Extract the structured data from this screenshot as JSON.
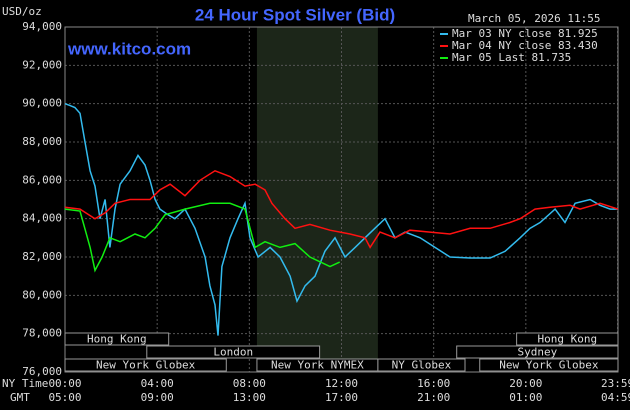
{
  "chart_data": {
    "type": "line",
    "title": "24 Hour Spot Silver (Bid)",
    "y_label": "USD/oz",
    "timestamp": "March 05, 2026 11:55",
    "site": "www.kitco.com",
    "x_label": "NY Time",
    "x2_label": "GMT",
    "xlim": [
      0,
      24
    ],
    "xticks": [
      {
        "value": 0,
        "label": "00:00"
      },
      {
        "value": 4,
        "label": "04:00"
      },
      {
        "value": 8,
        "label": "08:00"
      },
      {
        "value": 12,
        "label": "12:00"
      },
      {
        "value": 16,
        "label": "16:00"
      },
      {
        "value": 20,
        "label": "20:00"
      },
      {
        "value": 23.983,
        "label": "23:59"
      }
    ],
    "gmt_ticks": [
      {
        "value": 0,
        "label": "05:00"
      },
      {
        "value": 4,
        "label": "09:00"
      },
      {
        "value": 8,
        "label": "13:00"
      },
      {
        "value": 12,
        "label": "17:00"
      },
      {
        "value": 16,
        "label": "21:00"
      },
      {
        "value": 20,
        "label": "01:00"
      },
      {
        "value": 23.983,
        "label": "04:59"
      }
    ],
    "ylim": [
      76000,
      94000
    ],
    "yticks": [
      {
        "value": 76000,
        "label": "76,000"
      },
      {
        "value": 78000,
        "label": "78,000"
      },
      {
        "value": 80000,
        "label": "80,000"
      },
      {
        "value": 82000,
        "label": "82,000"
      },
      {
        "value": 84000,
        "label": "84,000"
      },
      {
        "value": 86000,
        "label": "86,000"
      },
      {
        "value": 88000,
        "label": "88,000"
      },
      {
        "value": 90000,
        "label": "90,000"
      },
      {
        "value": 92000,
        "label": "92,000"
      },
      {
        "value": 94000,
        "label": "94,000"
      }
    ],
    "grid": true,
    "series": [
      {
        "name": "Mar 03 NY close 81.925",
        "color": "#33bbee",
        "x": [
          0,
          0.22,
          0.43,
          0.65,
          0.87,
          1.09,
          1.3,
          1.52,
          1.74,
          1.95,
          2.17,
          2.39,
          2.82,
          3.17,
          3.47,
          3.69,
          3.91,
          4.12,
          4.47,
          4.77,
          5.21,
          5.64,
          6.08,
          6.29,
          6.51,
          6.64,
          6.81,
          7.16,
          7.51,
          7.81,
          8.03,
          8.38,
          8.9,
          9.33,
          9.77,
          10.07,
          10.42,
          10.85,
          11.28,
          11.72,
          12.15,
          12.59,
          13.02,
          13.45,
          13.89,
          14.32,
          14.76,
          15.41,
          16.06,
          16.71,
          17.58,
          18.45,
          19.1,
          19.75,
          20.18,
          20.62,
          21.27,
          21.7,
          22.14,
          22.79,
          23.22,
          23.66,
          24
        ],
        "values": [
          90000,
          89900,
          89800,
          89500,
          88000,
          86500,
          85700,
          84000,
          85000,
          82500,
          84500,
          85800,
          86500,
          87300,
          86800,
          86000,
          85000,
          84500,
          84200,
          84000,
          84500,
          83500,
          82000,
          80500,
          79500,
          77900,
          81500,
          83000,
          84000,
          84800,
          83000,
          82000,
          82500,
          82000,
          81000,
          79700,
          80500,
          81000,
          82300,
          83000,
          82000,
          82500,
          83000,
          83500,
          84000,
          83000,
          83300,
          83000,
          82500,
          82000,
          81950,
          81950,
          82300,
          83000,
          83500,
          83800,
          84500,
          83800,
          84800,
          85000,
          84700,
          84500,
          84500
        ]
      },
      {
        "name": "Mar 04 NY close 83.430",
        "color": "#ff1111",
        "x": [
          0,
          0.65,
          1.3,
          1.74,
          2.17,
          2.82,
          3.69,
          4.12,
          4.56,
          5.21,
          5.86,
          6.51,
          7.16,
          7.81,
          8.25,
          8.68,
          8.98,
          9.55,
          9.98,
          10.63,
          11.5,
          12.37,
          13.02,
          13.24,
          13.67,
          14.32,
          14.97,
          15.84,
          16.71,
          17.58,
          18.45,
          19.31,
          19.75,
          20.4,
          21.05,
          21.92,
          22.35,
          23.22,
          24
        ],
        "values": [
          84600,
          84500,
          84000,
          84300,
          84800,
          85000,
          85000,
          85500,
          85800,
          85200,
          86000,
          86500,
          86200,
          85700,
          85800,
          85500,
          84800,
          84000,
          83500,
          83700,
          83400,
          83200,
          83000,
          82500,
          83300,
          83000,
          83400,
          83300,
          83200,
          83500,
          83500,
          83800,
          84000,
          84500,
          84600,
          84700,
          84500,
          84800,
          84500
        ]
      },
      {
        "name": "Mar 05 Last 81.735",
        "color": "#11ee11",
        "x": [
          0,
          0.65,
          1.09,
          1.3,
          1.61,
          1.95,
          2.39,
          3.04,
          3.47,
          3.91,
          4.34,
          5.21,
          6.29,
          7.16,
          7.81,
          8.25,
          8.68,
          9.33,
          9.98,
          10.63,
          11.5,
          11.92
        ],
        "values": [
          84500,
          84400,
          82500,
          81300,
          82000,
          83000,
          82800,
          83200,
          83000,
          83500,
          84200,
          84500,
          84800,
          84800,
          84500,
          82500,
          82800,
          82500,
          82700,
          82000,
          81500,
          81735
        ]
      }
    ],
    "sessions": [
      [
        {
          "label": "Hong Kong",
          "start": 0,
          "end": 4.5
        },
        {
          "label": "Hong Kong",
          "start": 19.6,
          "end": 24
        }
      ],
      [
        {
          "label": "London",
          "start": 3.55,
          "end": 11.05
        },
        {
          "label": "Sydney",
          "start": 17,
          "end": 24
        }
      ],
      [
        {
          "label": "New York Globex",
          "start": 0,
          "end": 7.0
        },
        {
          "label": "New York NYMEX",
          "start": 8.33,
          "end": 13.58
        },
        {
          "label": "NY Globex",
          "start": 13.58,
          "end": 17.36
        },
        {
          "label": "New York Globex",
          "start": 18,
          "end": 24
        }
      ]
    ]
  }
}
